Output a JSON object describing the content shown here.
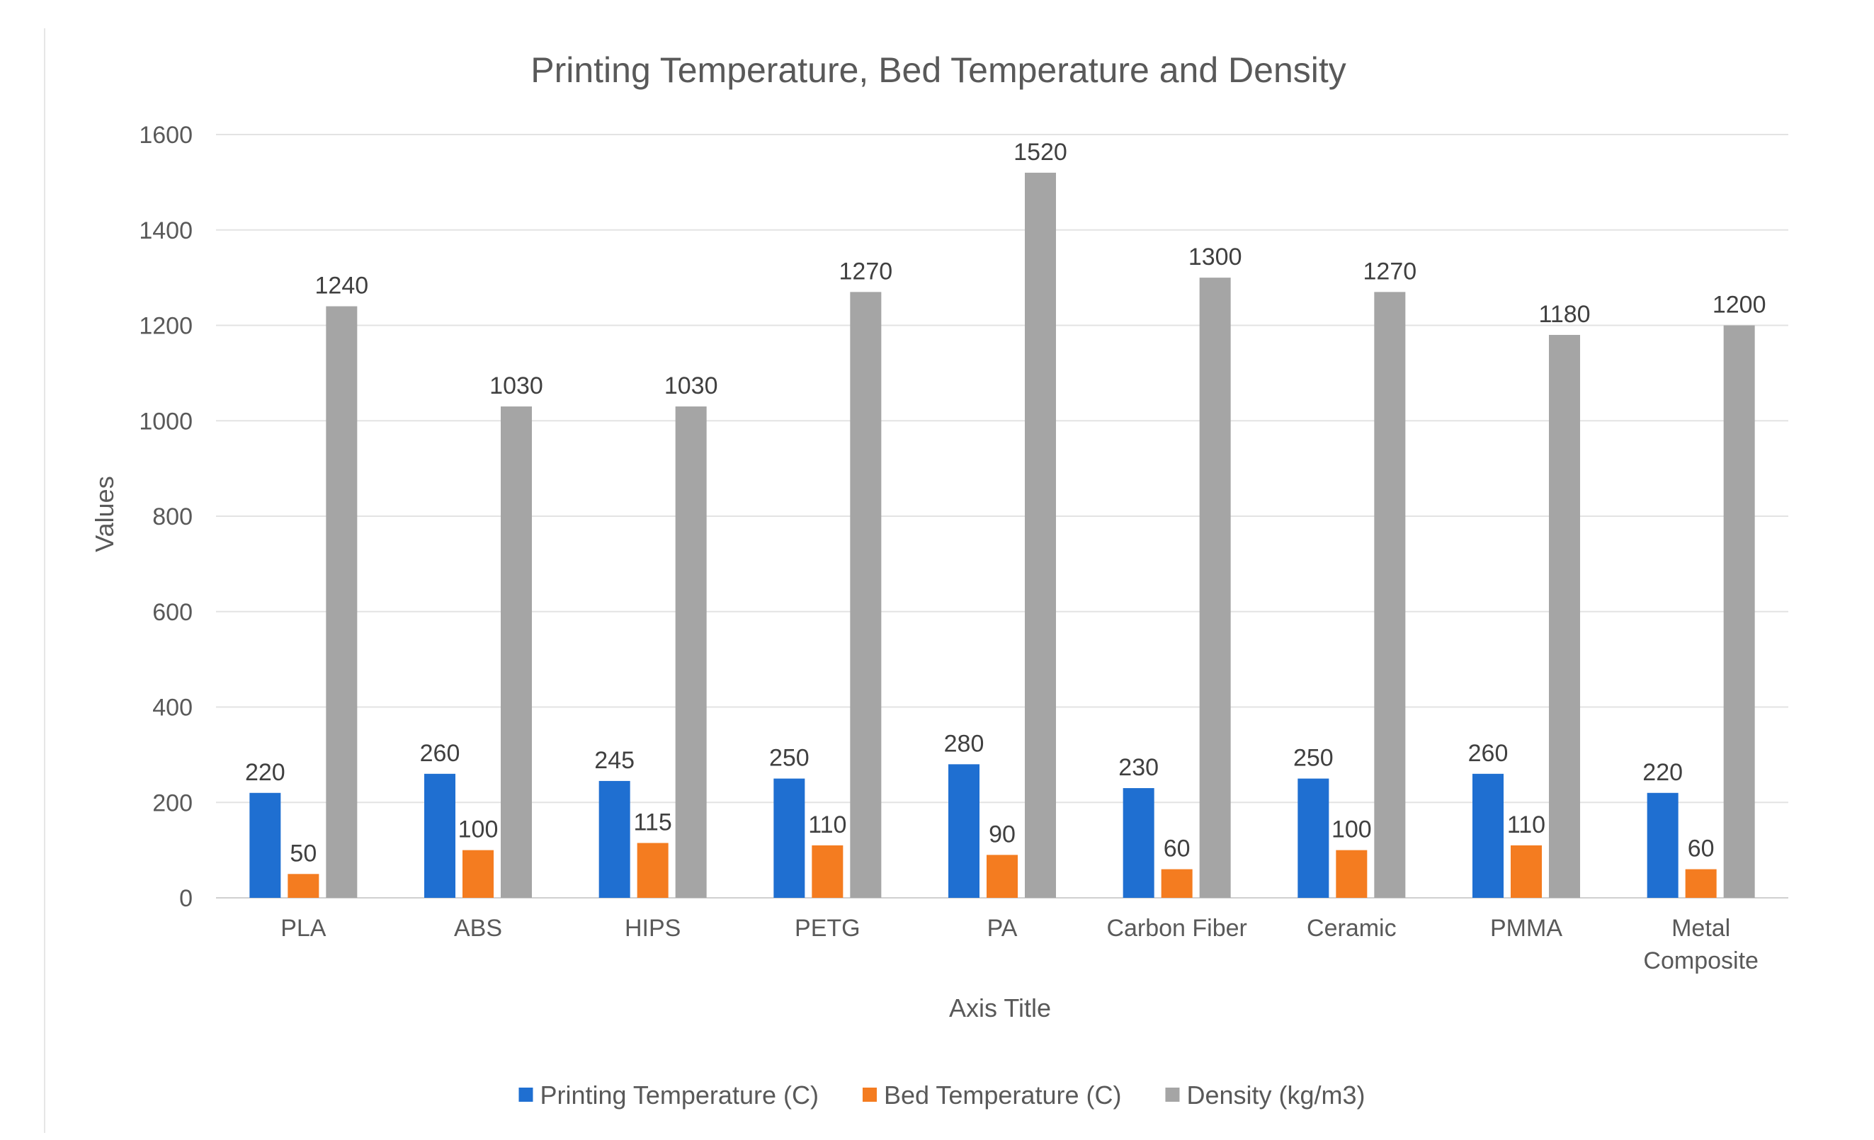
{
  "chart_data": {
    "type": "bar",
    "title": "Printing Temperature,  Bed Temperature and Density",
    "xlabel": "Axis Title",
    "ylabel": "Values",
    "ylim": [
      0,
      1600
    ],
    "yticks": [
      0,
      200,
      400,
      600,
      800,
      1000,
      1200,
      1400,
      1600
    ],
    "grid": true,
    "legend_position": "bottom",
    "categories": [
      [
        "PLA"
      ],
      [
        "ABS"
      ],
      [
        "HIPS"
      ],
      [
        "PETG"
      ],
      [
        "PA"
      ],
      [
        "Carbon Fiber"
      ],
      [
        "Ceramic"
      ],
      [
        "PMMA"
      ],
      [
        "Metal",
        "Composite"
      ]
    ],
    "series": [
      {
        "name": "Printing Temperature (C)",
        "color": "#1f6fd1",
        "values": [
          220,
          260,
          245,
          250,
          280,
          230,
          250,
          260,
          220
        ]
      },
      {
        "name": "Bed Temperature (C)",
        "color": "#f47c20",
        "values": [
          50,
          100,
          115,
          110,
          90,
          60,
          100,
          110,
          60
        ]
      },
      {
        "name": "Density (kg/m3)",
        "color": "#a5a5a5",
        "values": [
          1240,
          1030,
          1030,
          1270,
          1520,
          1300,
          1270,
          1180,
          1200
        ]
      }
    ]
  }
}
